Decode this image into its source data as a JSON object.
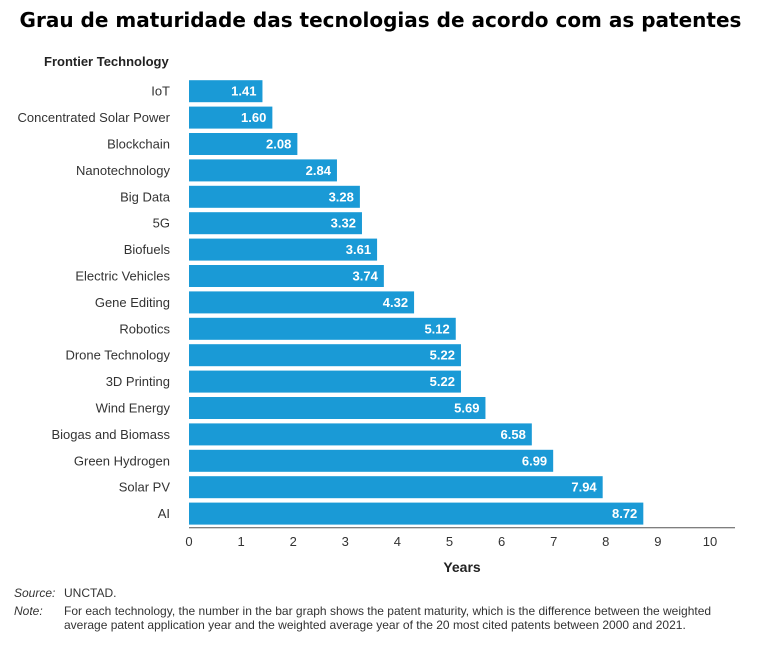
{
  "chart_data": {
    "type": "bar",
    "orientation": "horizontal",
    "title": "Grau de maturidade das tecnologias de acordo com as patentes",
    "category_axis_title": "Frontier Technology",
    "xlabel": "Years",
    "xlim": [
      0,
      10
    ],
    "xticks": [
      "0",
      "1",
      "2",
      "3",
      "4",
      "5",
      "6",
      "7",
      "8",
      "9",
      "10"
    ],
    "grid": false,
    "bar_color": "#1a9ad6",
    "categories": [
      "IoT",
      "Concentrated Solar Power",
      "Blockchain",
      "Nanotechnology",
      "Big Data",
      "5G",
      "Biofuels",
      "Electric Vehicles",
      "Gene Editing",
      "Robotics",
      "Drone Technology",
      "3D Printing",
      "Wind Energy",
      "Biogas and Biomass",
      "Green Hydrogen",
      "Solar PV",
      "AI"
    ],
    "values": [
      1.41,
      1.6,
      2.08,
      2.84,
      3.28,
      3.32,
      3.61,
      3.74,
      4.32,
      5.12,
      5.22,
      5.22,
      5.69,
      6.58,
      6.99,
      7.94,
      8.72
    ],
    "value_labels": [
      "1.41",
      "1.60",
      "2.08",
      "2.84",
      "3.28",
      "3.32",
      "3.61",
      "3.74",
      "4.32",
      "5.12",
      "5.22",
      "5.22",
      "5.69",
      "6.58",
      "6.99",
      "7.94",
      "8.72"
    ]
  },
  "footer": {
    "source_key": "Source:",
    "source_text": "UNCTAD.",
    "note_key": "Note:",
    "note_text": "For each technology, the number in the bar graph shows the patent maturity, which is the difference between the weighted average patent application year and the weighted average year of the 20 most cited patents between 2000 and 2021."
  }
}
